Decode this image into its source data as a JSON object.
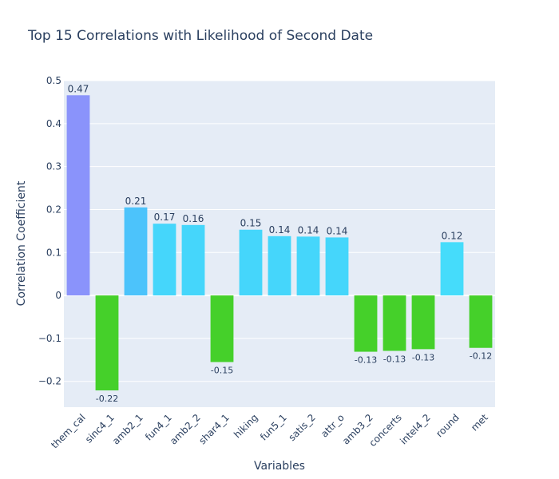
{
  "chart_data": {
    "type": "bar",
    "title": "Top 15 Correlations with Likelihood of Second Date",
    "xlabel": "Variables",
    "ylabel": "Correlation Coefficient",
    "ylim": [
      -0.26,
      0.5
    ],
    "yticks": [
      -0.2,
      -0.1,
      0,
      0.1,
      0.2,
      0.3,
      0.4,
      0.5
    ],
    "ytick_labels": [
      "−0.2",
      "−0.1",
      "0",
      "0.1",
      "0.2",
      "0.3",
      "0.4",
      "0.5"
    ],
    "grid": true,
    "categories": [
      "them_cal",
      "sinc4_1",
      "amb2_1",
      "fun4_1",
      "amb2_2",
      "shar4_1",
      "hiking",
      "fun5_1",
      "satis_2",
      "attr_o",
      "amb3_2",
      "concerts",
      "intel4_2",
      "round",
      "met"
    ],
    "values": [
      0.466,
      -0.221,
      0.205,
      0.167,
      0.164,
      -0.155,
      0.153,
      0.138,
      0.137,
      0.135,
      -0.131,
      -0.129,
      -0.125,
      0.124,
      -0.122
    ],
    "value_labels": [
      "0.47",
      "-0.22",
      "0.21",
      "0.17",
      "0.16",
      "-0.15",
      "0.15",
      "0.14",
      "0.14",
      "0.14",
      "-0.13",
      "-0.13",
      "-0.13",
      "0.12",
      "-0.12"
    ],
    "colors": [
      "#8a93fb",
      "#45d02a",
      "#4cc3fb",
      "#45d6fb",
      "#45d6fb",
      "#45d02a",
      "#45d6fb",
      "#45d6fb",
      "#45d6fb",
      "#45d6fb",
      "#45d02a",
      "#45d02a",
      "#45d02a",
      "#45dcfb",
      "#45d02a"
    ],
    "plot_bg": "#e5ecf6",
    "text_color": "#2a3f5f"
  }
}
